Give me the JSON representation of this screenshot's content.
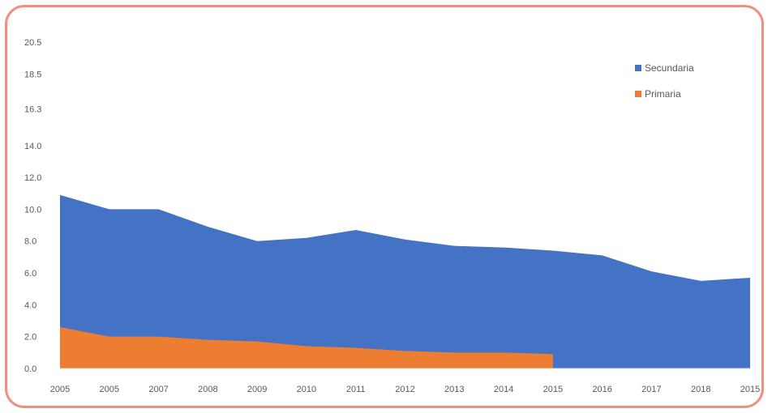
{
  "chart_data": {
    "type": "area",
    "title": "",
    "xlabel": "",
    "ylabel": "",
    "ylim": [
      0,
      20.5
    ],
    "yticks": [
      "20.5",
      "18.5",
      "16.3",
      "14.0",
      "12.0",
      "10.0",
      "8.0",
      "6.0",
      "4.0",
      "2.0",
      "0.0"
    ],
    "ytick_values": [
      20.5,
      18.5,
      16.3,
      14.0,
      12.0,
      10.0,
      8.0,
      6.0,
      4.0,
      2.0,
      0.0
    ],
    "xticks": [
      "2005",
      "2005",
      "2007",
      "2008",
      "2009",
      "2010",
      "2011",
      "2012",
      "2013",
      "2014",
      "2015",
      "2016",
      "2017",
      "2018",
      "2015"
    ],
    "grid": false,
    "legend": "top-right",
    "stacked": true,
    "series": [
      {
        "name": "Primaria",
        "color": "#ed7d31",
        "values": [
          2.6,
          2.0,
          2.0,
          1.8,
          1.7,
          1.4,
          1.3,
          1.1,
          1.0,
          1.0,
          0.9,
          null,
          null,
          null,
          null
        ]
      },
      {
        "name": "Secundaria",
        "color": "#4472c4",
        "values": [
          8.3,
          8.0,
          8.0,
          7.1,
          6.3,
          6.8,
          7.4,
          7.0,
          6.7,
          6.6,
          6.5,
          7.1,
          6.1,
          5.5,
          5.7
        ]
      }
    ],
    "totals": [
      10.9,
      10.0,
      10.0,
      8.9,
      8.0,
      8.2,
      8.7,
      8.1,
      7.7,
      7.6,
      7.4,
      7.1,
      6.1,
      5.5,
      5.7
    ]
  }
}
